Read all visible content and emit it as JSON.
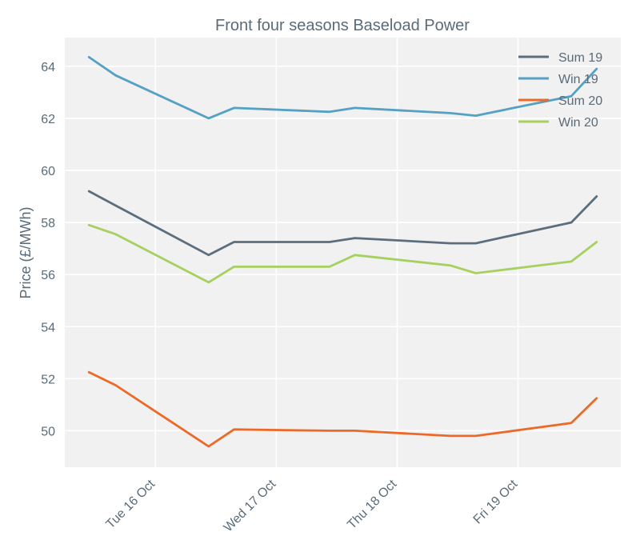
{
  "chart_data": {
    "type": "line",
    "title": "Front four seasons Baseload Power",
    "xlabel": "",
    "ylabel": "Price (£/MWh)",
    "ylim": [
      48.6,
      65.1
    ],
    "yticks": [
      50,
      52,
      54,
      56,
      58,
      60,
      62,
      64
    ],
    "xlim": [
      15.25,
      19.85
    ],
    "xticks": [
      {
        "value": 16,
        "label": "Tue 16 Oct"
      },
      {
        "value": 17,
        "label": "Wed 17 Oct"
      },
      {
        "value": 18,
        "label": "Thu 18 Oct"
      },
      {
        "value": 19,
        "label": "Fri 19 Oct"
      }
    ],
    "x": [
      15.45,
      15.67,
      16.44,
      16.65,
      17.44,
      17.65,
      18.44,
      18.65,
      19.44,
      19.65
    ],
    "legend_position": "top-right",
    "series": [
      {
        "name": "Sum 19",
        "color": "#5c6e7e",
        "values": [
          59.2,
          58.65,
          56.75,
          57.25,
          57.25,
          57.4,
          57.2,
          57.2,
          58.0,
          59.0
        ]
      },
      {
        "name": "Win 19",
        "color": "#55a0c3",
        "values": [
          64.35,
          63.65,
          62.0,
          62.4,
          62.25,
          62.4,
          62.2,
          62.1,
          62.85,
          63.9
        ]
      },
      {
        "name": "Sum 20",
        "color": "#ec6a29",
        "values": [
          52.25,
          51.75,
          49.4,
          50.05,
          50.0,
          50.0,
          49.8,
          49.8,
          50.3,
          51.25
        ]
      },
      {
        "name": "Win 20",
        "color": "#a6d060",
        "values": [
          57.9,
          57.55,
          55.7,
          56.3,
          56.3,
          56.75,
          56.35,
          56.05,
          56.5,
          57.25
        ]
      }
    ]
  }
}
